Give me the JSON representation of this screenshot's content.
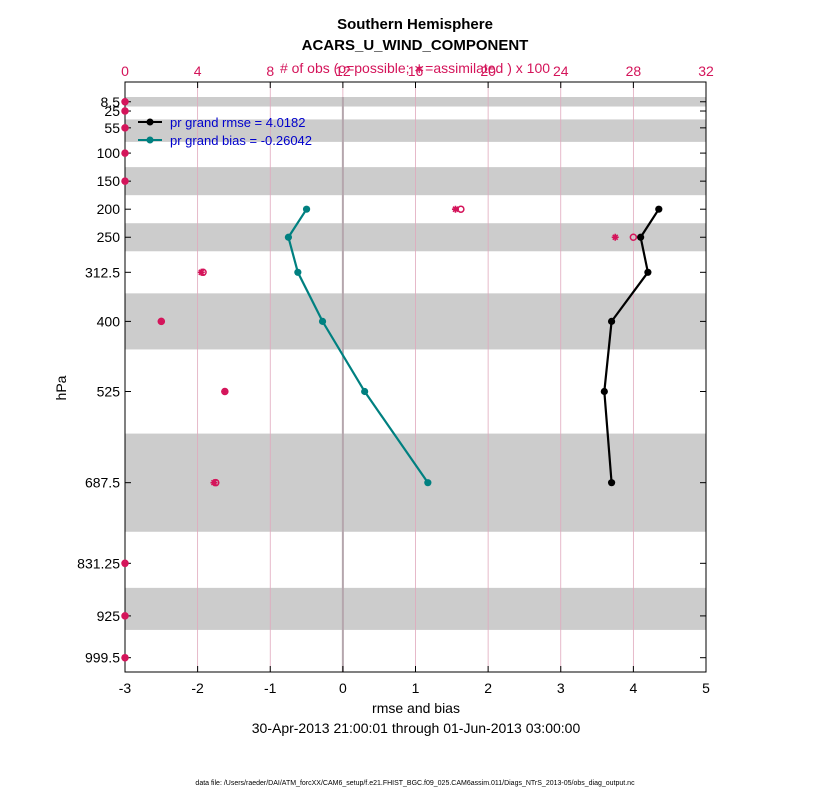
{
  "chart_data": {
    "type": "line",
    "title": "Southern Hemisphere",
    "subtitle": "ACARS_U_WIND_COMPONENT",
    "top_axis_label": "# of obs (o=possible; ∗=assimilated ) x 100",
    "top_ticks": [
      "0",
      "4",
      "8",
      "12",
      "16",
      "20",
      "24",
      "28",
      "32"
    ],
    "top_xlim": [
      0,
      32
    ],
    "xlabel": "rmse and bias",
    "x_ticks": [
      "-3",
      "-2",
      "-1",
      "0",
      "1",
      "2",
      "3",
      "4",
      "5"
    ],
    "xlim": [
      -3,
      5
    ],
    "ylabel": "hPa",
    "y_tick_labels": [
      "8.5",
      "25",
      "55",
      "100",
      "150",
      "200",
      "250",
      "312.5",
      "400",
      "525",
      "687.5",
      "831.25",
      "925",
      "999.5"
    ],
    "y_tick_values": [
      8.5,
      25,
      55,
      100,
      150,
      200,
      250,
      312.5,
      400,
      525,
      687.5,
      831.25,
      925,
      999.5
    ],
    "ylim": [
      0,
      1025
    ],
    "bands": [
      [
        0,
        17
      ],
      [
        40,
        80
      ],
      [
        125,
        175
      ],
      [
        225,
        275
      ],
      [
        350,
        450
      ],
      [
        600,
        775
      ],
      [
        875,
        950
      ]
    ],
    "series": [
      {
        "name": "pr grand rmse = 4.0182",
        "color": "#000000",
        "pressure": [
          200,
          250,
          312.5,
          400,
          525,
          687.5
        ],
        "values": [
          4.35,
          4.1,
          4.2,
          3.7,
          3.6,
          3.7
        ]
      },
      {
        "name": "pr grand bias = -0.26042",
        "color": "#008080",
        "pressure": [
          200,
          250,
          312.5,
          400,
          525,
          687.5
        ],
        "values": [
          -0.5,
          -0.75,
          -0.62,
          -0.28,
          0.3,
          1.17
        ]
      }
    ],
    "obs_count": {
      "color": "#d4145a",
      "pressure": [
        8.5,
        25,
        55,
        100,
        150,
        200,
        250,
        312.5,
        400,
        525,
        687.5,
        831.25,
        925,
        999.5
      ],
      "possible": [
        0,
        0,
        0,
        0,
        0,
        18.5,
        28,
        4.3,
        2.0,
        5.5,
        5.0,
        0,
        0,
        0
      ],
      "assimilated": [
        0,
        0,
        0,
        0,
        0,
        18.2,
        27,
        4.2,
        2.0,
        5.5,
        4.9,
        0,
        0,
        0
      ]
    },
    "date_range": "30-Apr-2013 21:00:01 through 01-Jun-2013 03:00:00",
    "footer": "data file: /Users/raeder/DAI/ATM_forcXX/CAM6_setup/f.e21.FHIST_BGC.f09_025.CAM6assim.011/Diags_NTrS_2013-05/obs_diag_output.nc",
    "legend_position": "top-left",
    "grid": true
  }
}
